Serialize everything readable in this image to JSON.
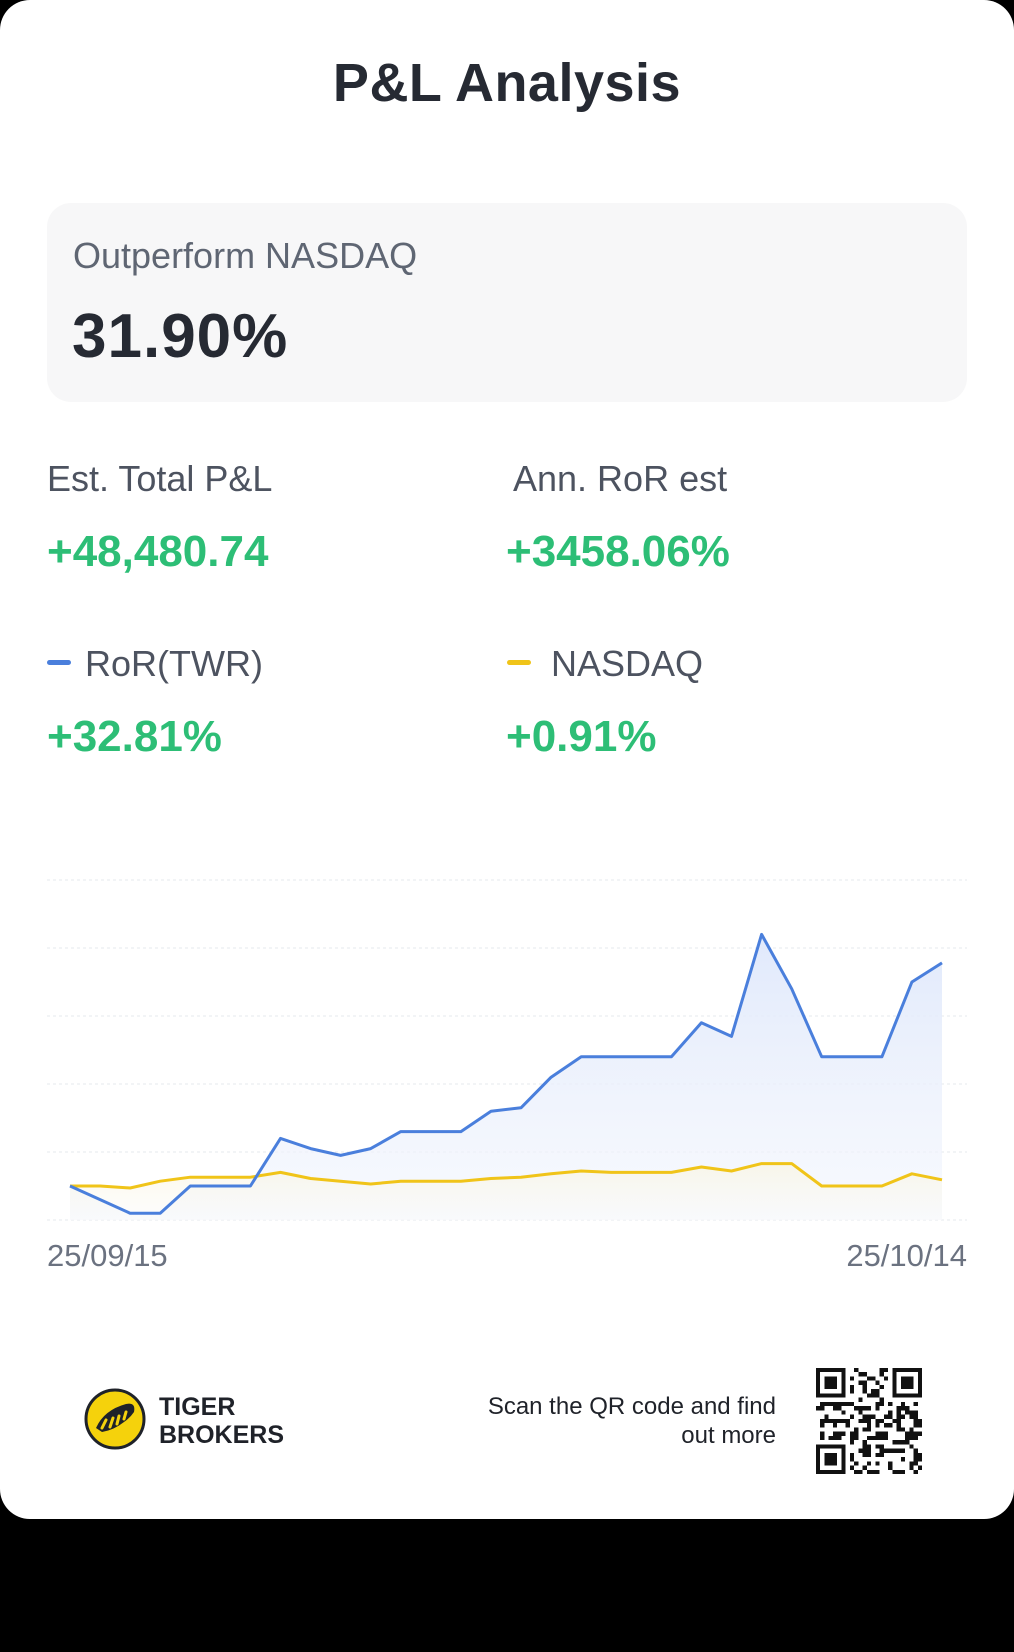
{
  "title": "P&L Analysis",
  "outperform": {
    "label": "Outperform NASDAQ",
    "value": "31.90%"
  },
  "metrics": {
    "total_pl": {
      "label": "Est. Total P&L",
      "value": "+48,480.74"
    },
    "ann_ror": {
      "label": "Ann. RoR est",
      "value": "+3458.06%"
    },
    "twr": {
      "label": "RoR(TWR)",
      "value": "+32.81%",
      "color": "#4a7fdc"
    },
    "nasdaq": {
      "label": "NASDAQ",
      "value": "+0.91%",
      "color": "#f0c419"
    }
  },
  "colors": {
    "positive": "#2dbe76",
    "twr_line": "#4a7fdc",
    "nasdaq_line": "#f0c419",
    "grid": "#e6e8ec"
  },
  "chart_data": {
    "type": "line",
    "x_start_label": "25/09/15",
    "x_end_label": "25/10/14",
    "ylim": [
      -5,
      45
    ],
    "grid": true,
    "series": [
      {
        "name": "RoR(TWR)",
        "color": "#4a7fdc",
        "values": [
          0,
          -2,
          -4,
          -4,
          0,
          0,
          0,
          7,
          5.5,
          4.5,
          5.5,
          8,
          8,
          8,
          11,
          11.5,
          16,
          19,
          19,
          19,
          19,
          24,
          22,
          37,
          29,
          19,
          19,
          19,
          30,
          32.81
        ]
      },
      {
        "name": "NASDAQ",
        "color": "#f0c419",
        "values": [
          0,
          0,
          -0.3,
          0.7,
          1.3,
          1.3,
          1.3,
          2,
          1.1,
          0.7,
          0.3,
          0.7,
          0.7,
          0.7,
          1.1,
          1.3,
          1.8,
          2.2,
          2,
          2,
          2,
          2.8,
          2.2,
          3.3,
          3.3,
          0,
          0,
          0,
          1.8,
          0.91
        ]
      }
    ]
  },
  "footer": {
    "brand": {
      "line1": "TIGER",
      "line2": "BROKERS"
    },
    "scan_text": "Scan the QR code and find out more"
  }
}
